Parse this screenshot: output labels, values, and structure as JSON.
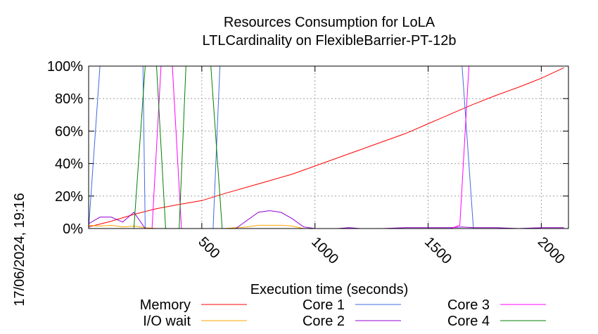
{
  "chart_data": {
    "type": "line",
    "title": "Resources Consumption for LoLA",
    "subtitle": "LTLCardinality on FlexibleBarrier-PT-12b",
    "xlabel": "Execution time (seconds)",
    "ylabel": "",
    "timestamp": "17/06/2024, 19:16",
    "xlim": [
      0,
      2120
    ],
    "ylim": [
      0,
      100
    ],
    "x_ticks": [
      500,
      1000,
      1500,
      2000
    ],
    "x_tick_labels": [
      "500",
      "1000",
      "1500",
      "2000"
    ],
    "y_ticks": [
      0,
      20,
      40,
      60,
      80,
      100
    ],
    "y_tick_labels": [
      "0%",
      "20%",
      "40%",
      "60%",
      "80%",
      "100%"
    ],
    "grid": true,
    "legend_position": "bottom",
    "series": [
      {
        "name": "Memory",
        "color": "#ff0000",
        "x": [
          0,
          100,
          200,
          300,
          400,
          500,
          600,
          700,
          800,
          900,
          1000,
          1100,
          1200,
          1300,
          1400,
          1500,
          1600,
          1700,
          1800,
          1900,
          2000,
          2100
        ],
        "y": [
          1,
          4.5,
          8.7,
          12.2,
          14.8,
          17.2,
          21.5,
          25.5,
          29.5,
          33.5,
          38.5,
          43.5,
          48.5,
          53.5,
          58.5,
          64.5,
          70.5,
          76.5,
          82,
          87,
          92.5,
          99
        ]
      },
      {
        "name": "I/O wait",
        "color": "#ffa500",
        "x": [
          0,
          50,
          100,
          150,
          200,
          250,
          300,
          400,
          500,
          600,
          650,
          700,
          750,
          800,
          850,
          900,
          950,
          1000,
          1100,
          1200,
          1300,
          1400,
          1500,
          1600,
          1700,
          1800,
          1900,
          2000,
          2100
        ],
        "y": [
          2,
          1.5,
          2,
          1,
          1.5,
          0.5,
          0,
          0,
          0,
          0,
          0.5,
          1,
          2,
          2,
          2,
          1.5,
          0,
          0,
          0,
          0,
          0,
          0,
          0,
          0,
          0,
          0,
          0,
          0,
          0
        ]
      },
      {
        "name": "Core 1",
        "color": "#4169e1",
        "x": [
          0,
          50,
          100,
          200,
          240,
          250,
          300,
          400,
          500,
          550,
          580,
          600,
          1600,
          1650,
          1700,
          2100
        ],
        "y": [
          0,
          100,
          100,
          100,
          100,
          0,
          0,
          0,
          0,
          0,
          100,
          100,
          100,
          100,
          0,
          0
        ]
      },
      {
        "name": "Core 2",
        "color": "#9400d3",
        "x": [
          0,
          50,
          100,
          150,
          200,
          250,
          300,
          400,
          500,
          600,
          650,
          700,
          750,
          800,
          850,
          900,
          950,
          1000,
          1100,
          1150,
          1200,
          1300,
          1400,
          1500,
          1600,
          1650,
          1700,
          1800,
          1900,
          2000,
          2100
        ],
        "y": [
          3,
          7,
          7,
          4,
          10,
          0,
          0,
          0,
          0,
          0,
          0,
          5,
          10,
          11,
          10,
          6,
          1,
          0,
          0,
          0.5,
          0,
          0,
          0.5,
          0.5,
          0.5,
          1,
          0.5,
          0.5,
          0,
          0.5,
          0.5
        ]
      },
      {
        "name": "Core 3",
        "color": "#ff00ff",
        "x": [
          0,
          280,
          320,
          370,
          410,
          450,
          1600,
          1640,
          1680,
          2100
        ],
        "y": [
          0,
          0,
          100,
          100,
          0,
          0,
          0,
          2,
          100,
          100
        ]
      },
      {
        "name": "Core 4",
        "color": "#008000",
        "x": [
          0,
          200,
          250,
          300,
          340,
          400,
          430,
          540,
          590,
          700,
          2100
        ],
        "y": [
          0,
          0,
          100,
          100,
          0,
          0,
          100,
          100,
          0,
          0,
          0
        ]
      }
    ]
  }
}
